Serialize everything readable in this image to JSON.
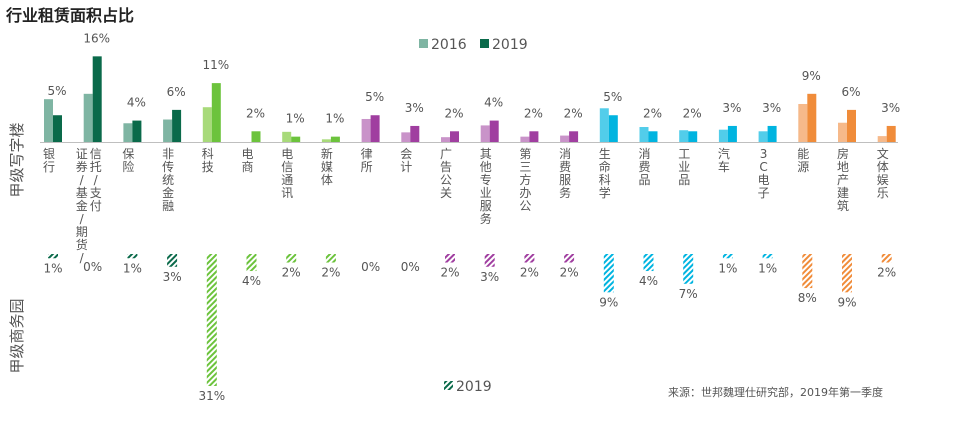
{
  "title": "行业租赁面积占比",
  "source": "来源：世邦魏理仕研究部，2019年第一季度",
  "chart_data": [
    {
      "type": "bar",
      "name": "甲级写字楼",
      "ylabel": "甲级写字楼",
      "legend": {
        "position": "top-center",
        "entries": [
          "2016",
          "2019"
        ]
      },
      "categories": [
        "银行",
        "证券/基金/期货/信托/支付",
        "保险",
        "非传统金融",
        "科技",
        "电商",
        "电信通讯",
        "新媒体",
        "律所",
        "会计",
        "广告公关",
        "其他专业服务",
        "第三方办公",
        "消费服务",
        "生命科学",
        "消费品",
        "工业品",
        "汽车",
        "3C电子",
        "能源",
        "房地产建筑",
        "文体娱乐"
      ],
      "series": [
        {
          "name": "2016",
          "values": [
            8,
            9,
            3.5,
            4.2,
            6.5,
            0,
            1.9,
            0.5,
            4.3,
            1.8,
            0.9,
            3.1,
            1.0,
            1.2,
            6.3,
            2.8,
            2.2,
            2.3,
            2.0,
            7.1,
            3.6,
            1.1
          ]
        },
        {
          "name": "2019",
          "values": [
            5,
            16,
            4,
            6,
            11,
            2,
            1,
            1,
            5,
            3,
            2,
            4,
            2,
            2,
            5,
            2,
            2,
            3,
            3,
            9,
            6,
            3
          ]
        }
      ],
      "value_labels": [
        "5%",
        "16%",
        "4%",
        "6%",
        "11%",
        "2%",
        "1%",
        "1%",
        "5%",
        "3%",
        "2%",
        "4%",
        "2%",
        "2%",
        "5%",
        "2%",
        "2%",
        "3%",
        "3%",
        "9%",
        "6%",
        "3%"
      ],
      "ylim": [
        0,
        17
      ],
      "grid": false
    },
    {
      "type": "bar",
      "name": "甲级商务园",
      "ylabel": "甲级商务园",
      "legend": {
        "position": "bottom-center",
        "entries": [
          "2019"
        ]
      },
      "categories": [
        "银行",
        "证券/基金/期货/信托/支付",
        "保险",
        "非传统金融",
        "科技",
        "电商",
        "电信通讯",
        "新媒体",
        "律所",
        "会计",
        "广告公关",
        "其他专业服务",
        "第三方办公",
        "消费服务",
        "生命科学",
        "消费品",
        "工业品",
        "汽车",
        "3C电子",
        "能源",
        "房地产建筑",
        "文体娱乐"
      ],
      "series": [
        {
          "name": "2019",
          "values": [
            1,
            0,
            1,
            3,
            31,
            4,
            2,
            2,
            0,
            0,
            2,
            3,
            2,
            2,
            9,
            4,
            7,
            1,
            1,
            8,
            9,
            2
          ]
        }
      ],
      "value_labels": [
        "1%",
        "0%",
        "1%",
        "3%",
        "31%",
        "4%",
        "2%",
        "2%",
        "0%",
        "0%",
        "2%",
        "3%",
        "2%",
        "2%",
        "9%",
        "4%",
        "7%",
        "1%",
        "1%",
        "8%",
        "9%",
        "2%"
      ],
      "ylim": [
        0,
        31
      ],
      "grid": false
    }
  ],
  "colors": {
    "category_light": [
      "#7fb5a3",
      "#7fb5a3",
      "#7fb5a3",
      "#7fb5a3",
      "#a8da7a",
      "#a8da7a",
      "#a8da7a",
      "#a8da7a",
      "#c993c9",
      "#c993c9",
      "#c993c9",
      "#c993c9",
      "#c993c9",
      "#c993c9",
      "#52cdea",
      "#52cdea",
      "#52cdea",
      "#52cdea",
      "#52cdea",
      "#f6b98a",
      "#f6b98a",
      "#f6b98a"
    ],
    "category_dark": [
      "#0a6a4a",
      "#0a6a4a",
      "#0a6a4a",
      "#0a6a4a",
      "#6cc33c",
      "#6cc33c",
      "#6cc33c",
      "#6cc33c",
      "#a03ea0",
      "#a03ea0",
      "#a03ea0",
      "#a03ea0",
      "#a03ea0",
      "#a03ea0",
      "#00b4e0",
      "#00b4e0",
      "#00b4e0",
      "#00b4e0",
      "#00b4e0",
      "#f08c3a",
      "#f08c3a",
      "#f08c3a"
    ],
    "legend_2016": "#7fb5a3",
    "legend_2019": "#0a6a4a",
    "axis": "#bfbfbf",
    "text": "#555555"
  }
}
